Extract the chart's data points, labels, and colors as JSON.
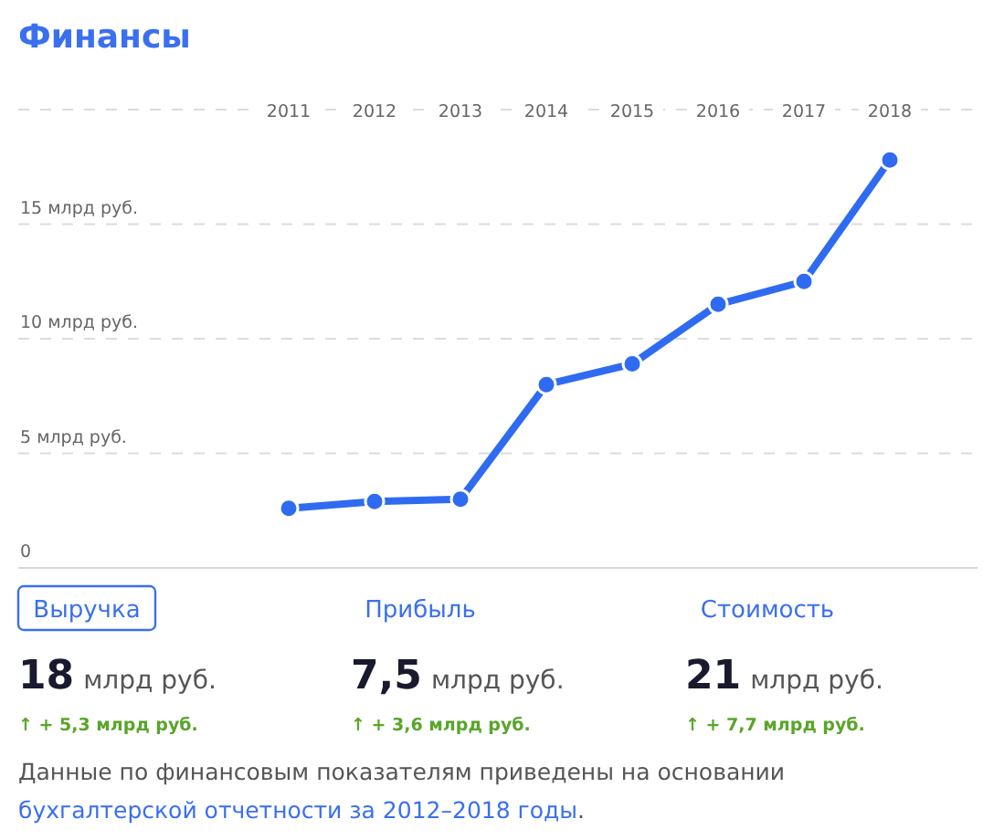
{
  "chart_data": {
    "type": "line",
    "title": "Финансы",
    "categories": [
      "2011",
      "2012",
      "2013",
      "2014",
      "2015",
      "2016",
      "2017",
      "2018"
    ],
    "values": [
      2.6,
      2.9,
      3.0,
      8.0,
      8.9,
      11.5,
      12.5,
      17.8
    ],
    "color": "#2f6bf0",
    "marker": "circle",
    "grid": "y",
    "ylim": [
      0,
      20
    ],
    "yticks": [
      {
        "value": 0,
        "label": "0"
      },
      {
        "value": 5,
        "label": "5 млрд руб."
      },
      {
        "value": 10,
        "label": "10 млрд руб."
      },
      {
        "value": 15,
        "label": "15 млрд руб."
      },
      {
        "value": 20,
        "label": null
      }
    ],
    "annotations": [
      "Выручка",
      "18",
      "млрд руб.",
      "↑ + 5,3 млрд руб.",
      "Прибыль",
      "7,5",
      "млрд руб.",
      "↑ + 3,6 млрд руб.",
      "Стоимость",
      "21",
      "млрд руб.",
      "↑ + 7,7 млрд руб.",
      "Данные по финансовым показателям приведены на основании",
      "бухгалтерской отчетности за 2012–2018 годы",
      "."
    ]
  }
}
